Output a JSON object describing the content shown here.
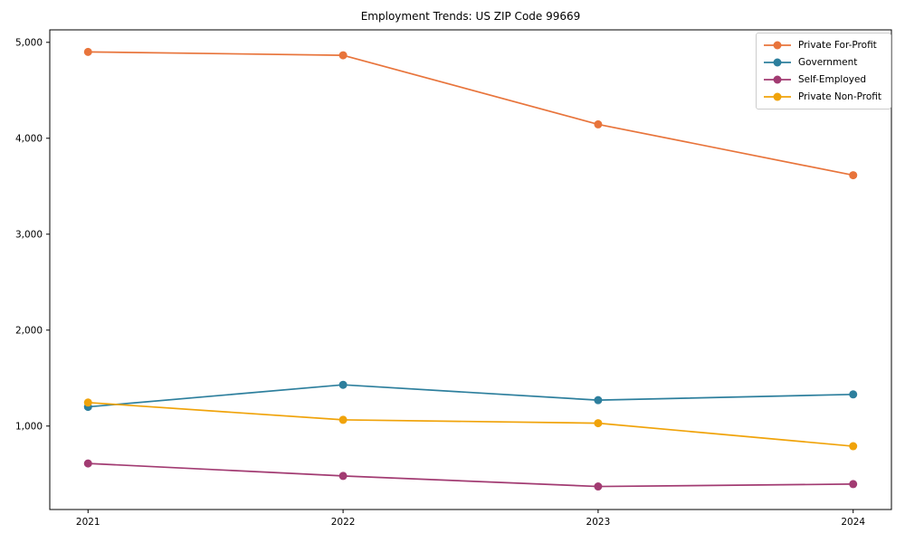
{
  "figure": {
    "title": "Employment Trends: US ZIP Code 99669"
  },
  "chart_data": {
    "type": "line",
    "title": "Employment Trends: US ZIP Code 99669",
    "xlabel": "",
    "ylabel": "",
    "x": [
      2021,
      2022,
      2023,
      2024
    ],
    "x_tick_labels": [
      "2021",
      "2022",
      "2023",
      "2024"
    ],
    "series": [
      {
        "name": "Private For-Profit",
        "color": "#E8743B",
        "values": [
          4900,
          4865,
          4145,
          3615
        ]
      },
      {
        "name": "Government",
        "color": "#2D7F9D",
        "values": [
          1200,
          1430,
          1270,
          1330
        ]
      },
      {
        "name": "Self-Employed",
        "color": "#A23B72",
        "values": [
          610,
          480,
          370,
          395
        ]
      },
      {
        "name": "Private Non-Profit",
        "color": "#F0A30A",
        "values": [
          1245,
          1065,
          1030,
          790
        ]
      }
    ],
    "yticks": [
      1000,
      2000,
      3000,
      4000,
      5000
    ],
    "ytick_labels": [
      "1,000",
      "2,000",
      "3,000",
      "4,000",
      "5,000"
    ],
    "ylim": [
      130,
      5130
    ],
    "xlim": [
      2020.85,
      2024.15
    ],
    "grid": false,
    "legend": {
      "position": "upper-right",
      "entries": [
        "Private For-Profit",
        "Government",
        "Self-Employed",
        "Private Non-Profit"
      ]
    }
  }
}
